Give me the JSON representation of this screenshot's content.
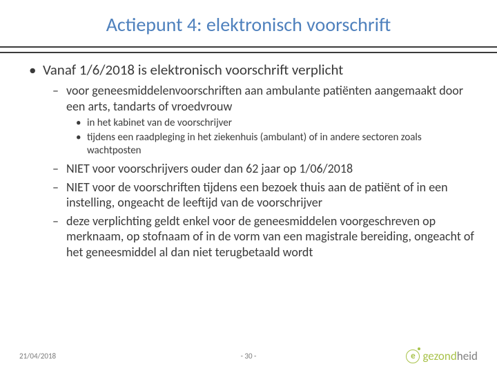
{
  "title": "Actiepunt 4: elektronisch voorschrift",
  "colors": {
    "title": "#4f81bd",
    "text": "#3a3a3a",
    "rule": "#3a3a3a",
    "footer": "#7a7a7a",
    "brand_green": "#a8c24a",
    "brand_grey": "#808080",
    "background": "#ffffff"
  },
  "bullets": {
    "lvl1_0": "Vanaf 1/6/2018 is elektronisch voorschrift verplicht",
    "lvl2_0": "voor geneesmiddelenvoorschriften aan ambulante patiënten aangemaakt door een arts, tandarts of vroedvrouw",
    "lvl3_0": "in het kabinet van de voorschrijver",
    "lvl3_1": "tijdens een raadpleging in het ziekenhuis (ambulant) of in andere sectoren zoals wachtposten",
    "lvl2_1": "NIET voor voorschrijvers ouder dan 62 jaar op 1/06/2018",
    "lvl2_2": "NIET voor de voorschriften tijdens een bezoek thuis aan de patiënt of in een instelling, ongeacht de leeftijd van de voorschrijver",
    "lvl2_3": "deze verplichting geldt enkel voor de geneesmiddelen voorgeschreven op merknaam, op stofnaam of in de vorm van een magistrale bereiding, ongeacht of het geneesmiddel al dan niet terugbetaald wordt"
  },
  "footer": {
    "date": "21/04/2018",
    "page": "- 30 -"
  },
  "logo": {
    "e": "e",
    "green": "gezond",
    "grey": "heid"
  }
}
